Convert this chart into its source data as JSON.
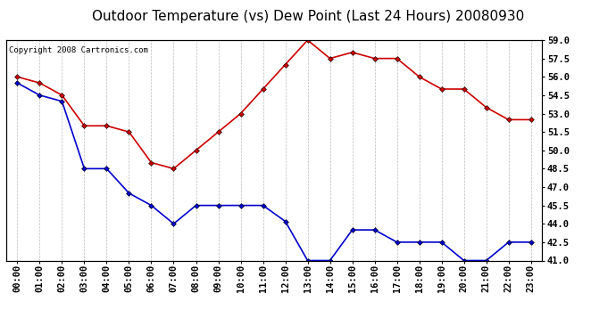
{
  "title": "Outdoor Temperature (vs) Dew Point (Last 24 Hours) 20080930",
  "copyright_text": "Copyright 2008 Cartronics.com",
  "x_labels": [
    "00:00",
    "01:00",
    "02:00",
    "03:00",
    "04:00",
    "05:00",
    "06:00",
    "07:00",
    "08:00",
    "09:00",
    "10:00",
    "11:00",
    "12:00",
    "13:00",
    "14:00",
    "15:00",
    "16:00",
    "17:00",
    "18:00",
    "19:00",
    "20:00",
    "21:00",
    "22:00",
    "23:00"
  ],
  "temp_data": [
    55.5,
    54.5,
    54.0,
    48.5,
    48.5,
    46.5,
    45.5,
    44.0,
    45.5,
    45.5,
    45.5,
    45.5,
    44.2,
    41.0,
    41.0,
    43.5,
    43.5,
    42.5,
    42.5,
    42.5,
    41.0,
    41.0,
    42.5,
    42.5
  ],
  "dew_data": [
    56.0,
    55.5,
    54.5,
    52.0,
    52.0,
    51.5,
    49.0,
    48.5,
    50.0,
    51.5,
    53.0,
    55.0,
    57.0,
    59.0,
    57.5,
    58.0,
    57.5,
    57.5,
    56.0,
    55.0,
    55.0,
    53.5,
    52.5,
    52.5
  ],
  "temp_color": "#0000cc",
  "dew_color": "#cc0000",
  "bg_color": "#ffffff",
  "grid_color": "#aaaaaa",
  "ylim_min": 41.0,
  "ylim_max": 59.0,
  "yticks": [
    41.0,
    42.5,
    44.0,
    45.5,
    47.0,
    48.5,
    50.0,
    51.5,
    53.0,
    54.5,
    56.0,
    57.5,
    59.0
  ],
  "title_fontsize": 11,
  "copyright_fontsize": 6.5,
  "tick_fontsize": 7.5,
  "marker_size": 3,
  "line_width": 1.2
}
